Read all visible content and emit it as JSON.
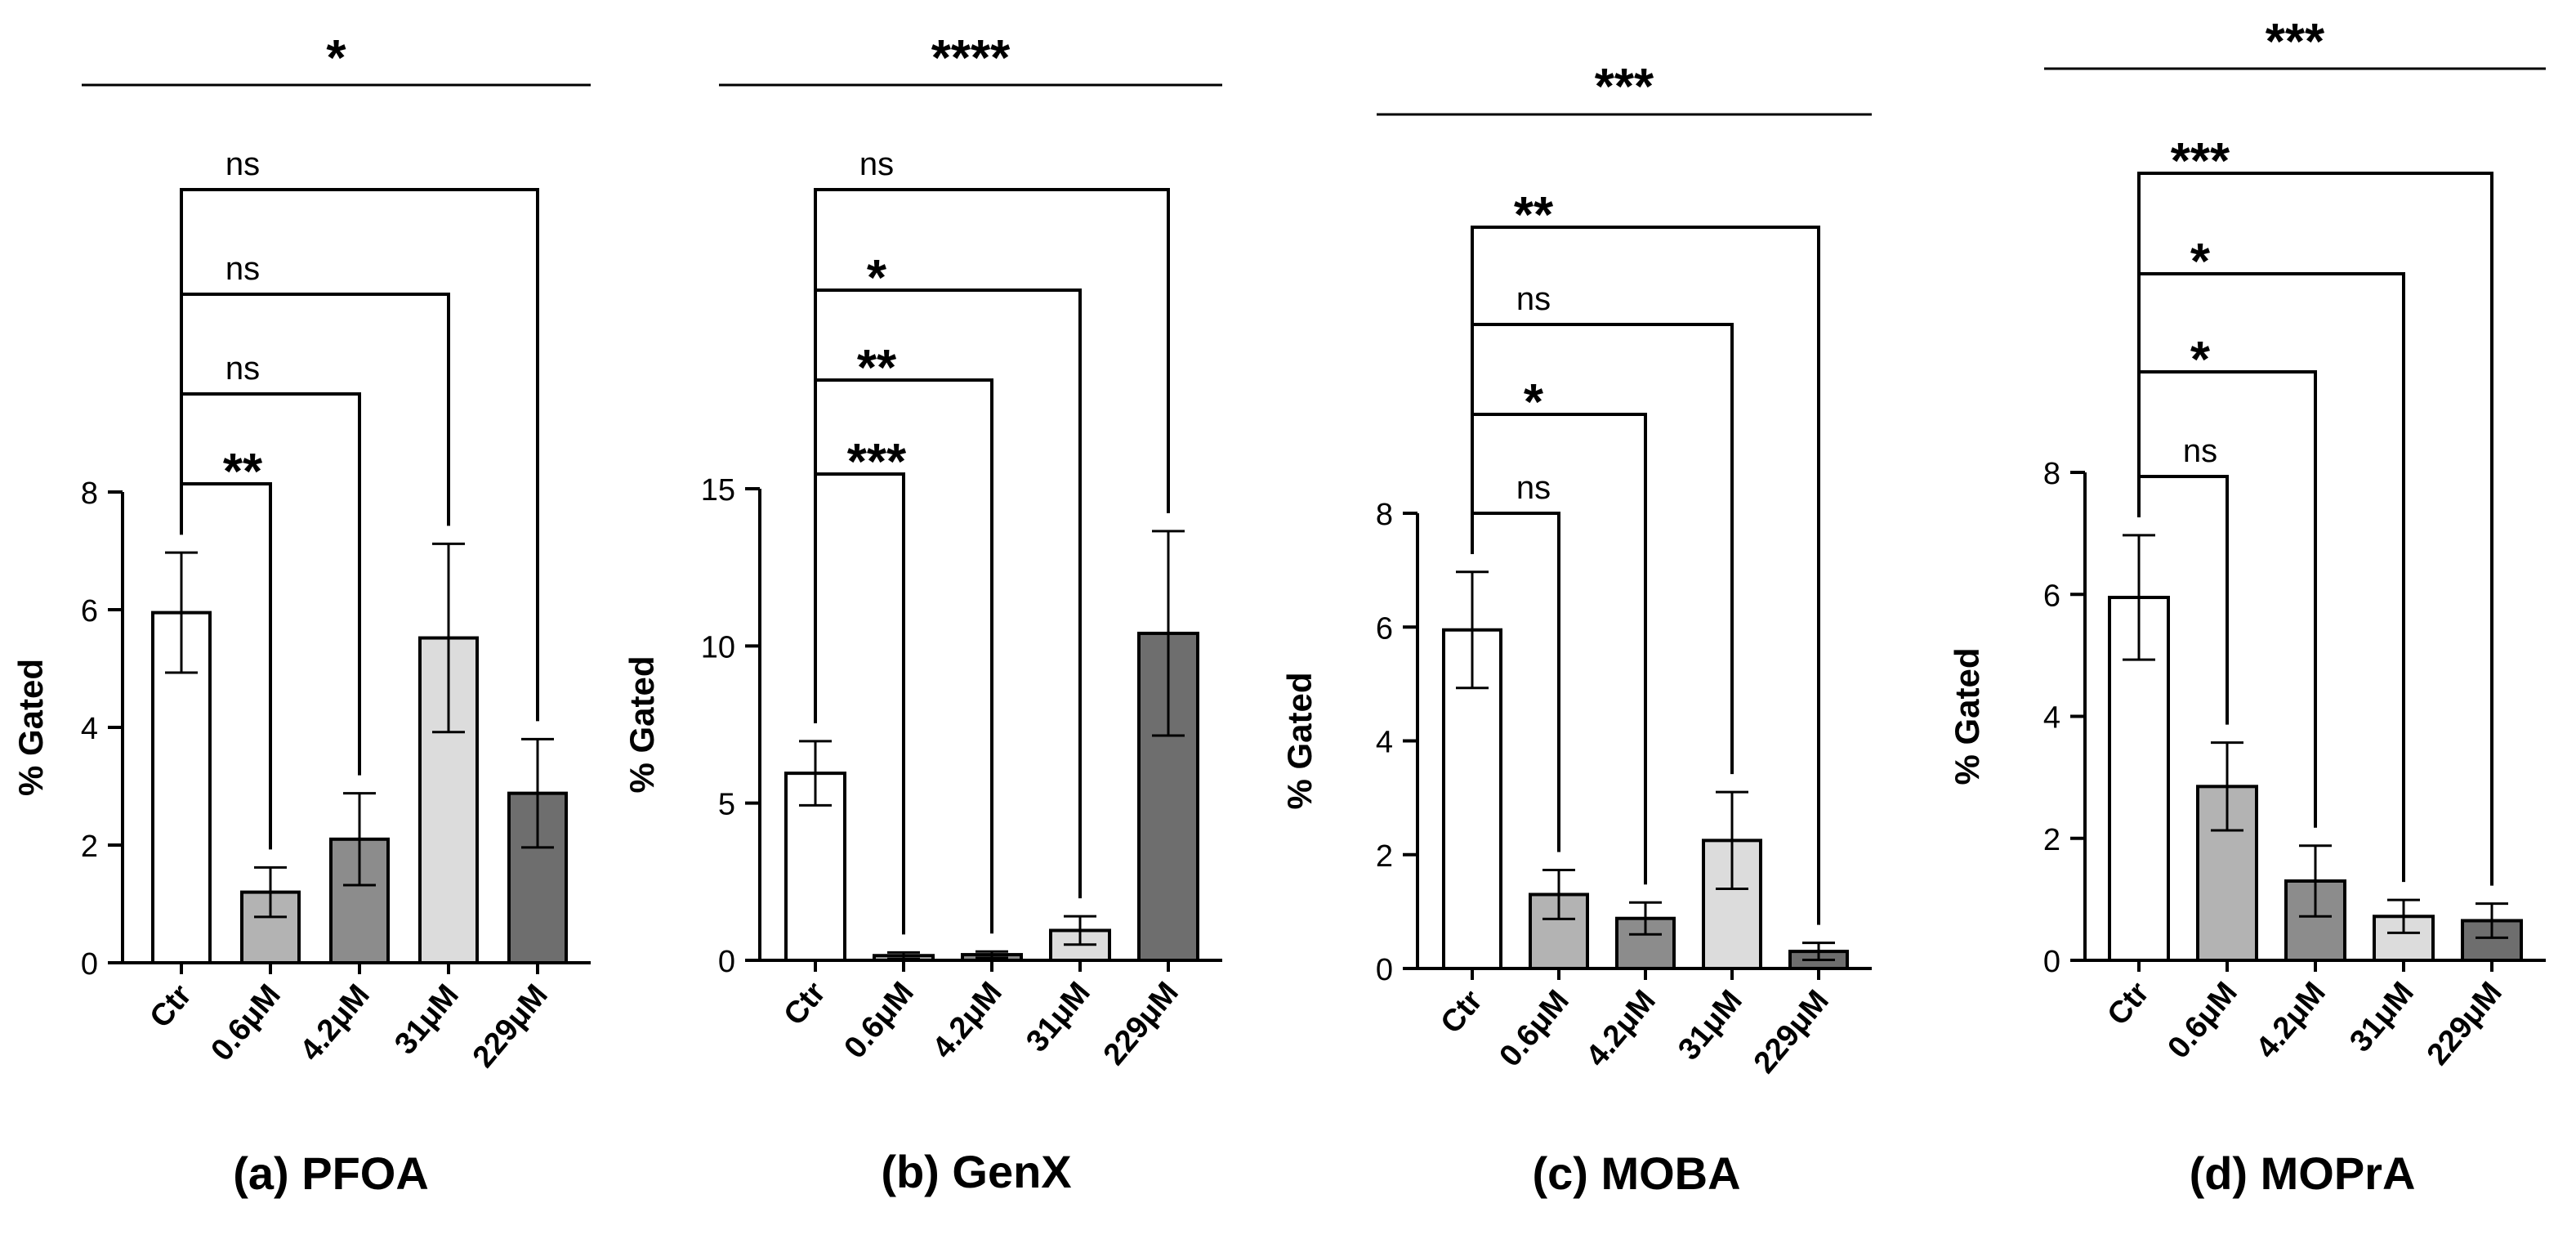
{
  "chart_data": [
    {
      "type": "bar",
      "caption": "(a) PFOA",
      "ylabel": "% Gated",
      "ylim": [
        0,
        8
      ],
      "yticks": [
        "0",
        "2",
        "4",
        "6",
        "8"
      ],
      "categories": [
        "Ctr",
        "0.6μM",
        "4.2μM",
        "31μM",
        "229μM"
      ],
      "values": [
        5.95,
        1.2,
        2.1,
        5.52,
        2.88
      ],
      "errors": [
        1.02,
        0.42,
        0.78,
        1.6,
        0.92
      ],
      "bar_colors": [
        "#ffffff",
        "#b3b3b3",
        "#8c8c8c",
        "#dcdcdc",
        "#6e6e6e"
      ],
      "overall_significance": "*",
      "comparisons": [
        {
          "from": "Ctr",
          "to": "0.6μM",
          "label": "**"
        },
        {
          "from": "Ctr",
          "to": "4.2μM",
          "label": "ns"
        },
        {
          "from": "Ctr",
          "to": "31μM",
          "label": "ns"
        },
        {
          "from": "Ctr",
          "to": "229μM",
          "label": "ns"
        }
      ]
    },
    {
      "type": "bar",
      "caption": "(b) GenX",
      "ylabel": "% Gated",
      "ylim": [
        0,
        15
      ],
      "yticks": [
        "0",
        "5",
        "10",
        "15"
      ],
      "categories": [
        "Ctr",
        "0.6μM",
        "4.2μM",
        "31μM",
        "229μM"
      ],
      "values": [
        5.95,
        0.15,
        0.18,
        0.95,
        10.4
      ],
      "errors": [
        1.02,
        0.1,
        0.1,
        0.45,
        3.25
      ],
      "bar_colors": [
        "#ffffff",
        "#b3b3b3",
        "#8c8c8c",
        "#dcdcdc",
        "#6e6e6e"
      ],
      "overall_significance": "****",
      "comparisons": [
        {
          "from": "Ctr",
          "to": "0.6μM",
          "label": "***"
        },
        {
          "from": "Ctr",
          "to": "4.2μM",
          "label": "**"
        },
        {
          "from": "Ctr",
          "to": "31μM",
          "label": "*"
        },
        {
          "from": "Ctr",
          "to": "229μM",
          "label": "ns"
        }
      ]
    },
    {
      "type": "bar",
      "caption": "(c) MOBA",
      "ylabel": "% Gated",
      "ylim": [
        0,
        8
      ],
      "yticks": [
        "0",
        "2",
        "4",
        "6",
        "8"
      ],
      "categories": [
        "Ctr",
        "0.6μM",
        "4.2μM",
        "31μM",
        "229μM"
      ],
      "values": [
        5.95,
        1.3,
        0.88,
        2.25,
        0.3
      ],
      "errors": [
        1.02,
        0.43,
        0.28,
        0.85,
        0.15
      ],
      "bar_colors": [
        "#ffffff",
        "#b3b3b3",
        "#8c8c8c",
        "#dcdcdc",
        "#6e6e6e"
      ],
      "overall_significance": "***",
      "comparisons": [
        {
          "from": "Ctr",
          "to": "0.6μM",
          "label": "ns"
        },
        {
          "from": "Ctr",
          "to": "4.2μM",
          "label": "*"
        },
        {
          "from": "Ctr",
          "to": "31μM",
          "label": "ns"
        },
        {
          "from": "Ctr",
          "to": "229μM",
          "label": "**"
        }
      ]
    },
    {
      "type": "bar",
      "caption": "(d) MOPrA",
      "ylabel": "% Gated",
      "ylim": [
        0,
        8
      ],
      "yticks": [
        "0",
        "2",
        "4",
        "6",
        "8"
      ],
      "categories": [
        "Ctr",
        "0.6μM",
        "4.2μM",
        "31μM",
        "229μM"
      ],
      "values": [
        5.95,
        2.85,
        1.3,
        0.72,
        0.65
      ],
      "errors": [
        1.02,
        0.72,
        0.58,
        0.27,
        0.28
      ],
      "bar_colors": [
        "#ffffff",
        "#b3b3b3",
        "#8c8c8c",
        "#dcdcdc",
        "#6e6e6e"
      ],
      "overall_significance": "***",
      "comparisons": [
        {
          "from": "Ctr",
          "to": "0.6μM",
          "label": "ns"
        },
        {
          "from": "Ctr",
          "to": "4.2μM",
          "label": "*"
        },
        {
          "from": "Ctr",
          "to": "31μM",
          "label": "*"
        },
        {
          "from": "Ctr",
          "to": "229μM",
          "label": "***"
        }
      ]
    }
  ]
}
